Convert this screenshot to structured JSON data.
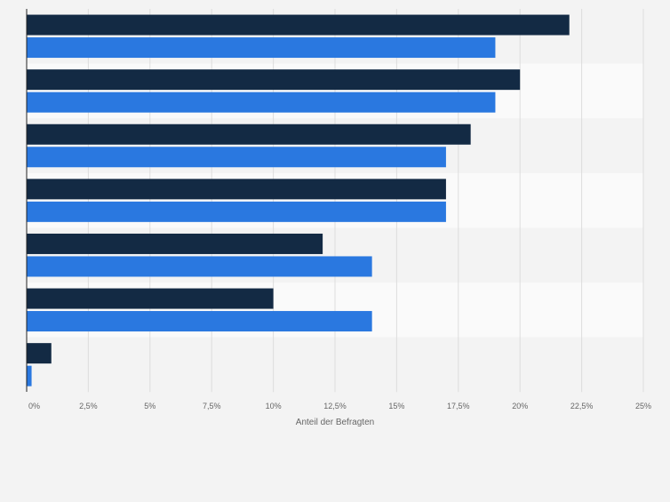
{
  "chart_data": {
    "type": "bar",
    "orientation": "horizontal",
    "title": "",
    "xlabel": "Anteil der Befragten",
    "ylabel": "",
    "xlim": [
      0,
      25
    ],
    "ticks": [
      {
        "value": 0,
        "label": "0%"
      },
      {
        "value": 2.5,
        "label": "2,5%"
      },
      {
        "value": 5,
        "label": "5%"
      },
      {
        "value": 7.5,
        "label": "7,5%"
      },
      {
        "value": 10,
        "label": "10%"
      },
      {
        "value": 12.5,
        "label": "12,5%"
      },
      {
        "value": 15,
        "label": "15%"
      },
      {
        "value": 17.5,
        "label": "17,5%"
      },
      {
        "value": 20,
        "label": "20%"
      },
      {
        "value": 22.5,
        "label": "22,5%"
      },
      {
        "value": 25,
        "label": "25%"
      }
    ],
    "categories": [
      "",
      "",
      "",
      "",
      "",
      "",
      ""
    ],
    "series": [
      {
        "color": "#132a44",
        "values": [
          22,
          20,
          18,
          17,
          12,
          10,
          1
        ]
      },
      {
        "color": "#2a78e0",
        "values": [
          19,
          19,
          17,
          17,
          14,
          14,
          0.2
        ]
      }
    ],
    "grid": true,
    "legend": "none"
  }
}
